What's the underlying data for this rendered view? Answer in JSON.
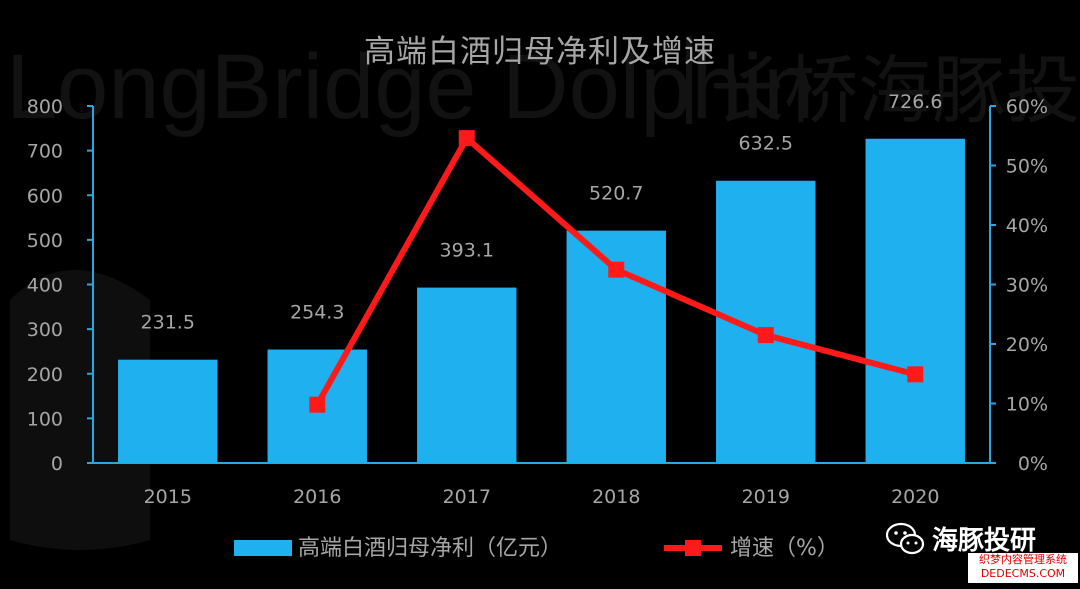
{
  "watermark": {
    "text_en": "LongBridge Dolphin",
    "text_cn": "长桥海豚投研"
  },
  "brand": {
    "name": "海豚投研",
    "icon": "wechat-icon"
  },
  "source_stamp": {
    "line1": "织梦内容管理系统",
    "line2": "DEDECMS.COM"
  },
  "colors": {
    "background": "#000000",
    "bar": "#1fb0ef",
    "line": "#ff1a1a",
    "axis": "#29a8e0",
    "text": "#a6a6a6"
  },
  "chart_data": {
    "type": "bar",
    "title": "高端白酒归母净利及增速",
    "categories": [
      "2015",
      "2016",
      "2017",
      "2018",
      "2019",
      "2020"
    ],
    "series": [
      {
        "name": "高端白酒归母净利（亿元）",
        "type": "bar",
        "axis": "left",
        "values": [
          231.5,
          254.3,
          393.1,
          520.7,
          632.5,
          726.6
        ],
        "labels": [
          "231.5",
          "254.3",
          "393.1",
          "520.7",
          "632.5",
          "726.6"
        ]
      },
      {
        "name": "增速（%）",
        "type": "line",
        "axis": "right",
        "values": [
          null,
          9.8,
          54.6,
          32.5,
          21.5,
          14.9
        ]
      }
    ],
    "y_left": {
      "min": 0,
      "max": 800,
      "ticks": [
        "0",
        "100",
        "200",
        "300",
        "400",
        "500",
        "600",
        "700",
        "800"
      ]
    },
    "y_right": {
      "min": 0,
      "max": 60,
      "ticks": [
        "0%",
        "10%",
        "20%",
        "30%",
        "40%",
        "50%",
        "60%"
      ]
    },
    "legend_position": "bottom",
    "grid": false
  }
}
